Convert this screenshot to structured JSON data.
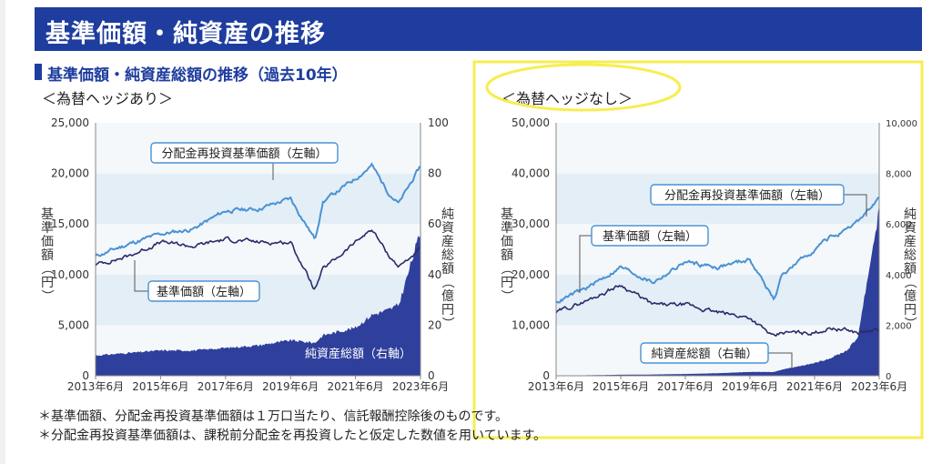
{
  "header": {
    "title": "基準価額・純資産の推移",
    "section_title": "基準価額・純資産総額の推移（過去10年）"
  },
  "notes": [
    "＊基準価額、分配金再投資基準価額は１万口当たり、信託報酬控除後のものです。",
    "＊分配金再投資基準価額は、課税前分配金を再投資したと仮定した数値を用いています。"
  ],
  "colors": {
    "header_blue": "#1e3d9e",
    "reinvest_line": "#4a92d4",
    "nav_line": "#2b2a6b",
    "net_assets_fill": "#2f3f9c",
    "band": "#e4eef6",
    "highlight": "#f6ee50"
  },
  "chart_data": [
    {
      "type": "line",
      "subtitle": "＜為替ヘッジあり＞",
      "x_ticks": [
        "2013年6月",
        "2015年6月",
        "2017年6月",
        "2019年6月",
        "2021年6月",
        "2023年6月"
      ],
      "x": [
        "2013-06",
        "2014-06",
        "2015-06",
        "2016-06",
        "2017-06",
        "2018-06",
        "2019-06",
        "2020-03",
        "2020-06",
        "2021-06",
        "2021-12",
        "2022-06",
        "2022-10",
        "2023-06"
      ],
      "ylabel_left": "基準価額（円）",
      "ylabel_right": "純資産総額（億円）",
      "ylim_left": [
        0,
        25000
      ],
      "yticks_left": [
        "0",
        "5,000",
        "10,000",
        "15,000",
        "20,000",
        "25,000"
      ],
      "ylim_right": [
        0,
        100
      ],
      "yticks_right": [
        "0",
        "20",
        "40",
        "60",
        "80",
        "100"
      ],
      "series": [
        {
          "name": "分配金再投資基準価額（左軸）",
          "axis": "left",
          "kind": "line",
          "color": "#4a92d4",
          "values": [
            11800,
            13000,
            14000,
            14500,
            16300,
            16500,
            17500,
            13500,
            17200,
            19500,
            20800,
            18200,
            17000,
            20700
          ]
        },
        {
          "name": "基準価額（左軸）",
          "axis": "left",
          "kind": "line",
          "color": "#2b2a6b",
          "values": [
            11000,
            11800,
            13200,
            12800,
            13500,
            13200,
            13200,
            8500,
            10500,
            13200,
            14500,
            12000,
            10800,
            12500
          ]
        },
        {
          "name": "純資産総額（右軸）",
          "axis": "right",
          "kind": "area",
          "color": "#2f3f9c",
          "values": [
            8,
            9,
            10,
            10,
            11,
            12,
            14,
            13,
            16,
            19,
            24,
            26,
            28,
            57
          ]
        }
      ],
      "grid": "horizontal bands",
      "legend": "callout labels"
    },
    {
      "type": "line",
      "subtitle": "＜為替ヘッジなし＞",
      "x_ticks": [
        "2013年6月",
        "2015年6月",
        "2017年6月",
        "2019年6月",
        "2021年6月",
        "2023年6月"
      ],
      "x": [
        "2013-06",
        "2014-06",
        "2015-06",
        "2016-06",
        "2017-06",
        "2018-06",
        "2019-06",
        "2020-03",
        "2020-06",
        "2021-06",
        "2021-12",
        "2022-06",
        "2022-10",
        "2023-06"
      ],
      "ylabel_left": "基準価額（円）",
      "ylabel_right": "純資産総額（億円）",
      "ylim_left": [
        0,
        50000
      ],
      "yticks_left": [
        "0",
        "10,000",
        "20,000",
        "30,000",
        "40,000",
        "50,000"
      ],
      "ylim_right": [
        0,
        10000
      ],
      "yticks_right": [
        "0",
        "2,000",
        "4,000",
        "6,000",
        "8,000",
        "10,000"
      ],
      "series": [
        {
          "name": "分配金再投資基準価額（左軸）",
          "axis": "left",
          "kind": "line",
          "color": "#4a92d4",
          "values": [
            14500,
            17500,
            21500,
            18500,
            22500,
            21500,
            23000,
            15000,
            20000,
            25000,
            27500,
            28500,
            30500,
            35000
          ]
        },
        {
          "name": "基準価額（左軸）",
          "axis": "left",
          "kind": "line",
          "color": "#2b2a6b",
          "values": [
            12500,
            15000,
            18000,
            14000,
            14000,
            12500,
            11500,
            7500,
            8500,
            8500,
            9500,
            9000,
            8500,
            9000
          ]
        },
        {
          "name": "純資産総額（右軸）",
          "axis": "right",
          "kind": "area",
          "color": "#2f3f9c",
          "values": [
            10,
            20,
            40,
            50,
            70,
            100,
            150,
            150,
            250,
            500,
            700,
            1000,
            1500,
            6600
          ]
        }
      ],
      "grid": "horizontal bands",
      "legend": "callout labels"
    }
  ]
}
